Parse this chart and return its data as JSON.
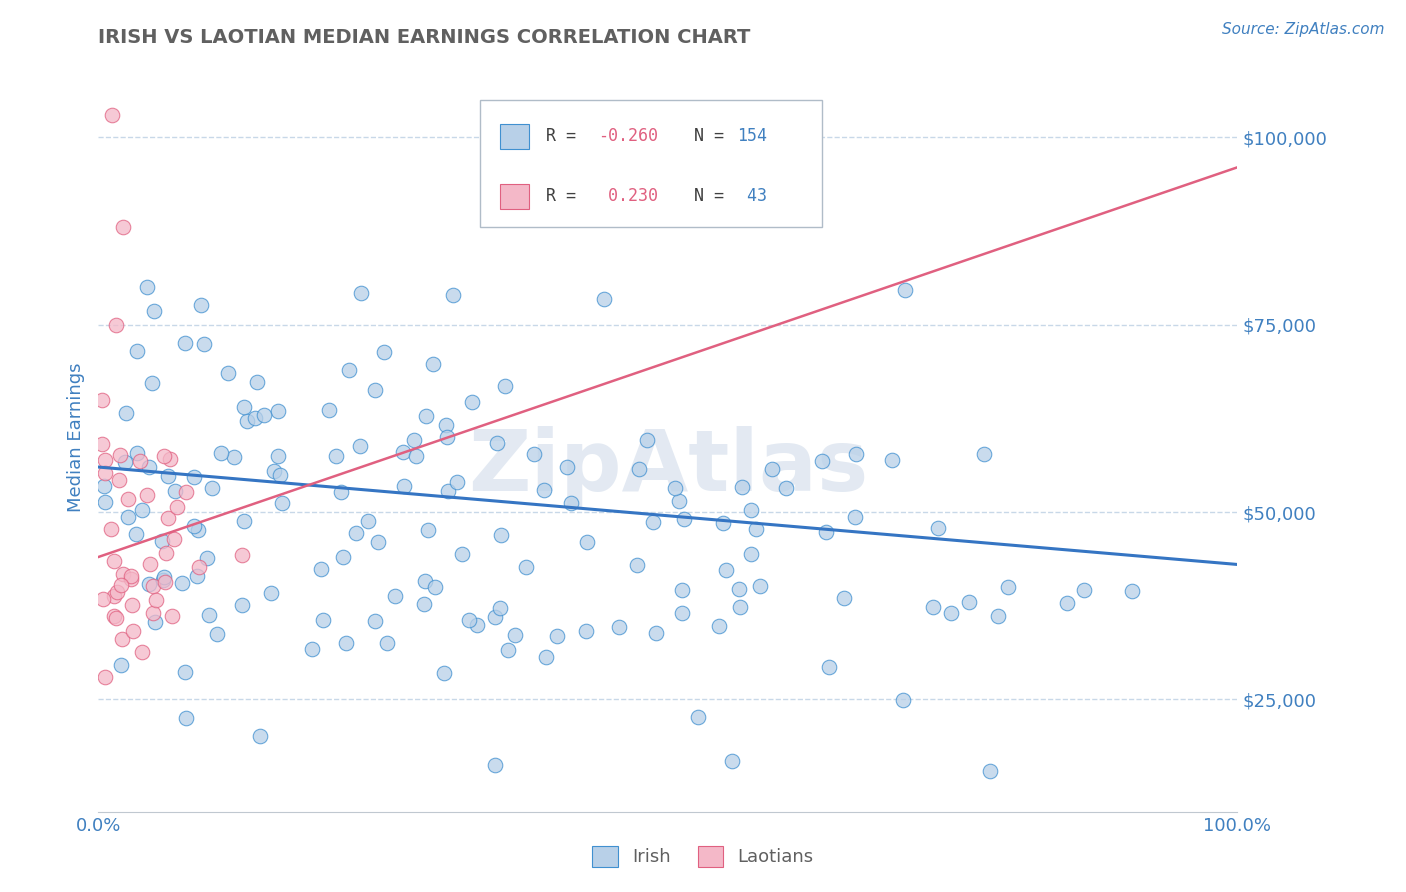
{
  "title": "IRISH VS LAOTIAN MEDIAN EARNINGS CORRELATION CHART",
  "source_text": "Source: ZipAtlas.com",
  "ylabel": "Median Earnings",
  "xlim": [
    0,
    1
  ],
  "ylim": [
    10000,
    110000
  ],
  "yticks": [
    25000,
    50000,
    75000,
    100000
  ],
  "ytick_labels": [
    "$25,000",
    "$50,000",
    "$75,000",
    "$100,000"
  ],
  "xtick_labels": [
    "0.0%",
    "100.0%"
  ],
  "irish_face_color": "#b8d0e8",
  "laotian_face_color": "#f4b8c8",
  "irish_edge_color": "#4090d0",
  "laotian_edge_color": "#e06080",
  "irish_line_color": "#3575c3",
  "laotian_line_color": "#e06080",
  "grid_color": "#c8d8e8",
  "background_color": "#ffffff",
  "title_color": "#606060",
  "axis_label_color": "#4080c0",
  "legend_R_color": "#e06080",
  "legend_N_color": "#4080c0",
  "legend_R_irish": "-0.260",
  "legend_N_irish": "154",
  "legend_R_laotian": " 0.230",
  "legend_N_laotian": " 43",
  "watermark": "ZipAtlas",
  "irish_seed": 101,
  "laotian_seed": 202,
  "irish_n": 154,
  "laotian_n": 43,
  "irish_trend_x": [
    0.0,
    1.0
  ],
  "irish_trend_y": [
    56000,
    43000
  ],
  "laotian_trend_x": [
    0.0,
    1.0
  ],
  "laotian_trend_y": [
    44000,
    96000
  ]
}
